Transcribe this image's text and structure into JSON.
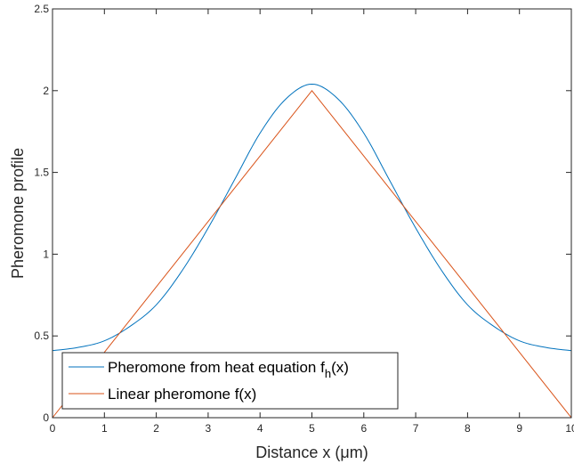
{
  "chart_data": {
    "type": "line",
    "xlabel": "Distance x (μm)",
    "ylabel": "Pheromone profile",
    "xlim": [
      0,
      10
    ],
    "ylim": [
      0,
      2.5
    ],
    "xticks": [
      "0",
      "1",
      "2",
      "3",
      "4",
      "5",
      "6",
      "7",
      "8",
      "9",
      "10"
    ],
    "yticks": [
      "0",
      "0.5",
      "1",
      "1.5",
      "2",
      "2.5"
    ],
    "grid": false,
    "legend_position": "bottom-left",
    "series": [
      {
        "name": "Pheromone from heat equation f_h(x)",
        "legend_main": "Pheromone from heat equation f",
        "legend_sub": "h",
        "legend_tail": "(x)",
        "color": "#0072BD",
        "x": [
          0,
          0.5,
          1,
          1.5,
          2,
          2.5,
          3,
          3.5,
          4,
          4.5,
          5,
          5.5,
          6,
          6.5,
          7,
          7.5,
          8,
          8.5,
          9,
          9.5,
          10
        ],
        "y": [
          0.41,
          0.43,
          0.47,
          0.56,
          0.69,
          0.9,
          1.16,
          1.45,
          1.74,
          1.95,
          2.04,
          1.95,
          1.74,
          1.45,
          1.16,
          0.9,
          0.69,
          0.56,
          0.47,
          0.43,
          0.41
        ]
      },
      {
        "name": "Linear pheromone f(x)",
        "legend_main": "Linear pheromone f(x)",
        "color": "#D95319",
        "x": [
          0,
          5,
          10
        ],
        "y": [
          0,
          2,
          0
        ]
      }
    ]
  }
}
